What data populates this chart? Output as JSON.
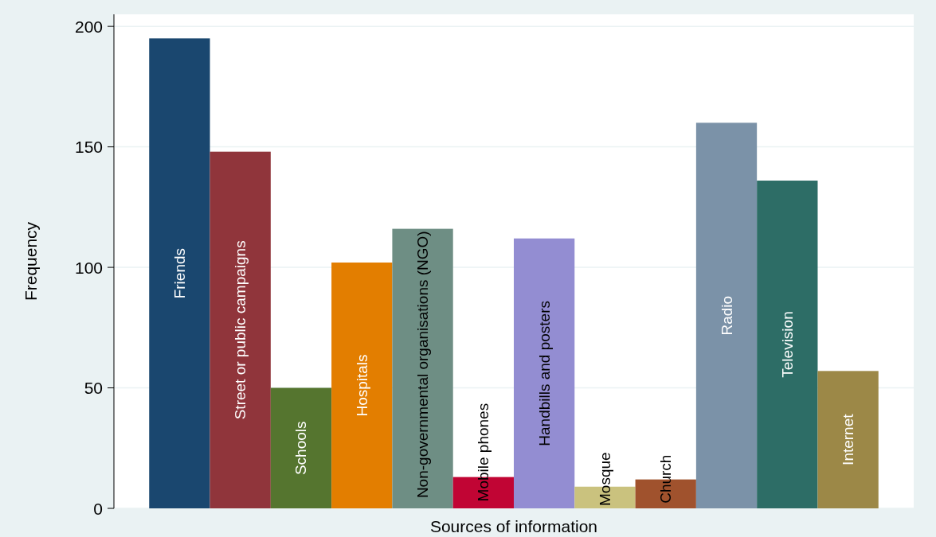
{
  "chart_data": {
    "type": "bar",
    "xlabel": "Sources of information",
    "ylabel": "Frequency",
    "categories": [
      "Friends",
      "Street or public campaigns",
      "Schools",
      "Hospitals",
      "Non-governmental organisations (NGO)",
      "Mobile phones",
      "Handbills and posters",
      "Mosque",
      "Church",
      "Radio",
      "Television",
      "Internet"
    ],
    "values": [
      195,
      148,
      50,
      102,
      116,
      13,
      112,
      9,
      12,
      160,
      136,
      57
    ],
    "colors": [
      "#1a476f",
      "#90353b",
      "#55752f",
      "#e37e00",
      "#6e8e84",
      "#c10534",
      "#938dd2",
      "#cac27e",
      "#a0522d",
      "#7b92a8",
      "#2d6d66",
      "#9c8847"
    ],
    "ylim": [
      0,
      205
    ],
    "yticks": [
      0,
      50,
      100,
      150,
      200
    ],
    "grid": "y"
  }
}
